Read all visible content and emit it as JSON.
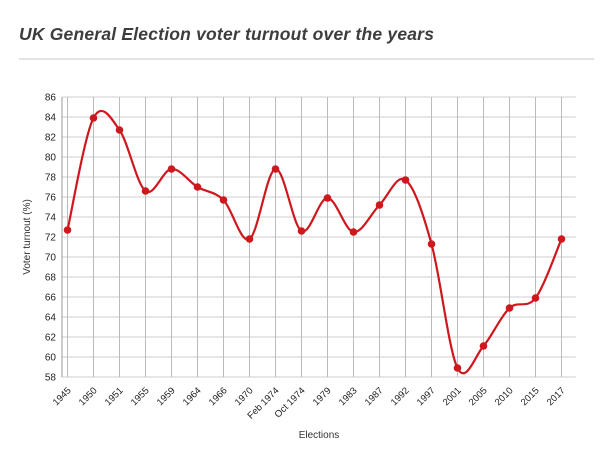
{
  "header": {
    "title": "UK General Election voter turnout over the years"
  },
  "chart_data": {
    "type": "line",
    "title": "UK General Election voter turnout over the years",
    "xlabel": "Elections",
    "ylabel": "Voter turnout (%)",
    "categories": [
      "1945",
      "1950",
      "1951",
      "1955",
      "1959",
      "1964",
      "1966",
      "1970",
      "Feb 1974",
      "Oct 1974",
      "1979",
      "1983",
      "1987",
      "1992",
      "1997",
      "2001",
      "2005",
      "2010",
      "2015",
      "2017"
    ],
    "values": [
      72.7,
      83.9,
      82.7,
      76.6,
      78.8,
      77.0,
      75.7,
      71.8,
      78.8,
      72.6,
      75.9,
      72.5,
      75.2,
      77.7,
      71.3,
      58.9,
      61.1,
      64.9,
      65.9,
      71.8
    ],
    "ylim": [
      58,
      86
    ],
    "ytick_step": 2,
    "grid": true,
    "legend": "none",
    "line_color": "#ce181e",
    "marker_color": "#ce181e",
    "h_grid_color": "#cfcfcf",
    "v_grid_color": "#bcbcbc",
    "axis_line_color": "#9a9a9a"
  }
}
